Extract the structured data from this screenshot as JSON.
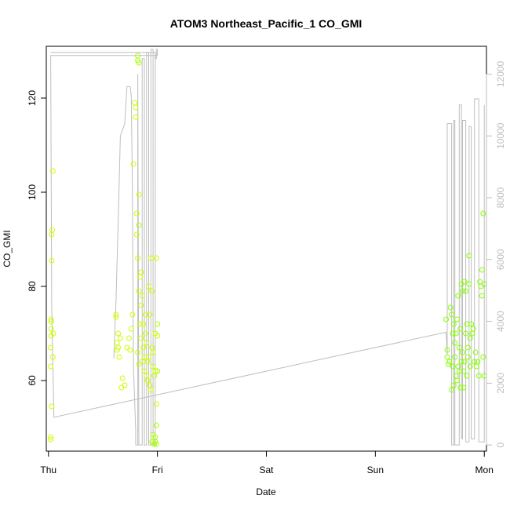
{
  "chart_data": {
    "type": "scatter",
    "title": "ATOM3 Northeast_Pacific_1 CO_GMI",
    "xlabel": "Date",
    "ylabel": "CO_GMI",
    "x_ticks": [
      "Thu",
      "Fri",
      "Sat",
      "Sun",
      "Mon"
    ],
    "xlim": [
      -0.02,
      4.02
    ],
    "ylim": [
      45,
      131
    ],
    "y_ticks": [
      60,
      80,
      100,
      120
    ],
    "y2lim": [
      -200,
      12900
    ],
    "y2_ticks": [
      0,
      2000,
      4000,
      6000,
      8000,
      10000,
      12000
    ],
    "grid": false,
    "colors": {
      "points_early": "#ccff00",
      "points_late": "#88ff00",
      "line": "#bebebe"
    },
    "series": [
      {
        "kind": "points",
        "axis": "left",
        "color": "#ccff00",
        "x": [
          0.02,
          0.02,
          0.02,
          0.02,
          0.025,
          0.025,
          0.025,
          0.025,
          0.03,
          0.03,
          0.03,
          0.035,
          0.04,
          0.04,
          0.045,
          0.62,
          0.62,
          0.63,
          0.63,
          0.64,
          0.64,
          0.65,
          0.66,
          0.67,
          0.68,
          0.7,
          0.72,
          0.74,
          0.75,
          0.76,
          0.77,
          0.78,
          0.79,
          0.8,
          0.8,
          0.81,
          0.81,
          0.82,
          0.82,
          0.83,
          0.83,
          0.83,
          0.84,
          0.84,
          0.85,
          0.85,
          0.85,
          0.86,
          0.86,
          0.87,
          0.87,
          0.88,
          0.88,
          0.89,
          0.89,
          0.9,
          0.9,
          0.91,
          0.91,
          0.92,
          0.92,
          0.93,
          0.93,
          0.94,
          0.94,
          0.95,
          0.95,
          0.96,
          0.96,
          0.97,
          0.98,
          0.98,
          0.99,
          0.99,
          1.0
        ],
        "y": [
          48,
          47.5,
          63,
          67,
          69.5,
          71,
          72.5,
          73,
          54.5,
          85.5,
          91,
          92,
          104.5,
          65,
          70,
          73.5,
          74,
          66.5,
          68,
          70,
          67,
          65,
          69,
          58.5,
          60.5,
          59,
          67,
          69,
          66.5,
          71,
          74,
          106,
          119,
          118,
          116,
          91,
          95.5,
          86,
          66,
          99.5,
          63.5,
          79,
          72,
          82,
          76,
          83,
          69,
          78,
          64,
          67,
          72,
          65,
          62,
          70,
          74,
          68,
          61,
          60,
          64,
          80,
          65,
          59,
          74,
          86,
          58,
          67,
          79,
          66,
          63,
          61,
          70,
          62,
          86,
          55,
          69.5
        ]
      },
      {
        "kind": "points",
        "axis": "left",
        "color": "#aaff00",
        "x": [
          0.82,
          0.82,
          0.83,
          0.83,
          0.95,
          0.96,
          0.97,
          0.98,
          0.98,
          0.99,
          0.99,
          1.0,
          1.0
        ],
        "y": [
          129,
          128,
          127.5,
          93,
          47,
          48.5,
          46.5,
          47,
          48,
          50.5,
          46.5,
          62,
          72
        ]
      },
      {
        "kind": "points",
        "axis": "left",
        "color": "#88ff00",
        "x": [
          3.65,
          3.66,
          3.66,
          3.67,
          3.68,
          3.69,
          3.7,
          3.7,
          3.71,
          3.71,
          3.72,
          3.72,
          3.73,
          3.73,
          3.74,
          3.74,
          3.75,
          3.75,
          3.76,
          3.76,
          3.77,
          3.77,
          3.78,
          3.78,
          3.79,
          3.79,
          3.8,
          3.8,
          3.81,
          3.81,
          3.82,
          3.82,
          3.83,
          3.83,
          3.84,
          3.84,
          3.85,
          3.85,
          3.86,
          3.86,
          3.87,
          3.87,
          3.88,
          3.89,
          3.9,
          3.91,
          3.92,
          3.93,
          3.94,
          3.95,
          3.96,
          3.97,
          3.98,
          3.98,
          3.99,
          3.99,
          4.0,
          4.0
        ],
        "y": [
          73,
          66.5,
          65,
          63.5,
          64,
          75.5,
          74,
          58,
          70,
          63,
          72,
          59,
          68,
          65,
          70,
          61,
          73,
          60,
          78,
          63,
          67,
          62,
          71,
          58.5,
          80.5,
          64,
          79,
          66,
          62,
          58.5,
          81,
          64,
          79,
          70,
          72,
          61,
          65,
          67,
          86.5,
          80.5,
          69,
          63,
          72,
          70,
          71,
          64,
          66,
          63,
          64,
          61,
          81,
          80,
          83.5,
          78,
          95.5,
          65,
          61,
          80.5
        ]
      },
      {
        "kind": "line",
        "axis": "right",
        "color": "#bebebe",
        "x": [
          0.02,
          0.98,
          0.98,
          0.99,
          0.99,
          1.0,
          1.0,
          0.02,
          0.03,
          0.05,
          3.65,
          3.66,
          3.66,
          3.7,
          3.7,
          3.72,
          3.72,
          3.73,
          3.73,
          3.77,
          3.77,
          3.79,
          3.79,
          3.8,
          3.8,
          3.83,
          3.83,
          3.86,
          3.86,
          3.88,
          3.88,
          3.91,
          3.91,
          3.95,
          3.95,
          4.0,
          4.0
        ],
        "y": [
          12700,
          12700,
          12500,
          12500,
          12800,
          12800,
          12600,
          12600,
          4500,
          900,
          3650,
          2900,
          10400,
          10400,
          0,
          0,
          10500,
          10500,
          0,
          0,
          11000,
          11000,
          200,
          200,
          10500,
          10500,
          100,
          100,
          10300,
          10300,
          200,
          200,
          11200,
          11200,
          100,
          100,
          11000
        ]
      },
      {
        "kind": "line",
        "axis": "right",
        "color": "#bebebe",
        "x": [
          0.6,
          0.62,
          0.64,
          0.66,
          0.68,
          0.7,
          0.72,
          0.75,
          0.76,
          0.77,
          0.78,
          0.8,
          0.8,
          0.82,
          0.82,
          0.83,
          0.84,
          0.86,
          0.86,
          0.88,
          0.88,
          0.9,
          0.9,
          0.92,
          0.92,
          0.94,
          0.94,
          0.96,
          0.96,
          0.98,
          0.98,
          1.0
        ],
        "y": [
          2800,
          4700,
          7200,
          10000,
          10200,
          10400,
          11600,
          11600,
          11300,
          8400,
          2500,
          500,
          0,
          0,
          12000,
          0,
          0,
          0,
          12500,
          12500,
          0,
          0,
          12700,
          12700,
          0,
          0,
          12800,
          12800,
          0,
          0,
          12600,
          12600
        ]
      }
    ]
  }
}
